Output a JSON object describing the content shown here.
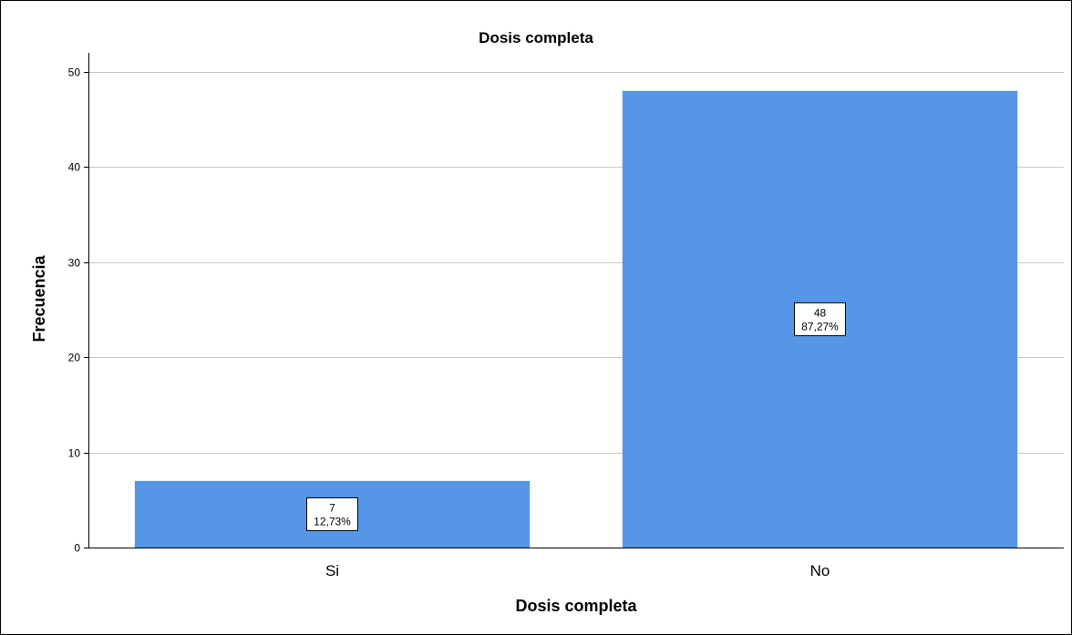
{
  "chart_data": {
    "type": "bar",
    "title": "Dosis completa",
    "xlabel": "Dosis completa",
    "ylabel": "Frecuencia",
    "categories": [
      "Si",
      "No"
    ],
    "values": [
      7,
      48
    ],
    "percent_labels": [
      "12,73%",
      "87,27%"
    ],
    "ylim": [
      0,
      52
    ],
    "yticks": [
      0,
      10,
      20,
      30,
      40,
      50
    ],
    "grid": true,
    "bar_color": "#5596e6"
  }
}
